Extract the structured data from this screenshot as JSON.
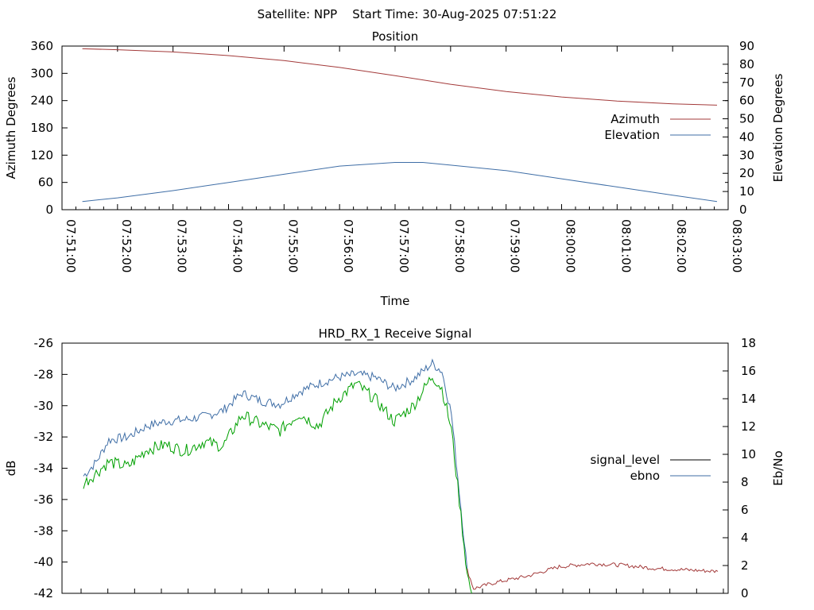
{
  "page": {
    "title": "Satellite: NPP    Start Time: 30-Aug-2025 07:51:22"
  },
  "chart_data": [
    {
      "type": "line",
      "title": "Position",
      "xlabel": "Time",
      "ylabel": "Azimuth Degrees",
      "y2label": "Elevation Degrees",
      "xlim": [
        "07:51:00",
        "08:03:00"
      ],
      "ylim": [
        0,
        360
      ],
      "y2lim": [
        0,
        90
      ],
      "x_tick_labels": [
        "07:51:00",
        "07:52:00",
        "07:53:00",
        "07:54:00",
        "07:55:00",
        "07:56:00",
        "07:57:00",
        "07:58:00",
        "07:59:00",
        "08:00:00",
        "08:01:00",
        "08:02:00",
        "08:03:00"
      ],
      "y_tick_labels": [
        "0",
        "60",
        "120",
        "180",
        "240",
        "300",
        "360"
      ],
      "y2_tick_labels": [
        "0",
        "10",
        "20",
        "30",
        "40",
        "50",
        "60",
        "70",
        "80",
        "90"
      ],
      "legend_placement": "right",
      "grid": false,
      "series": [
        {
          "name": "Azimuth",
          "axis": "y",
          "color": "#a33a3a",
          "points": [
            [
              "07:51:22",
              354
            ],
            [
              "07:52:00",
              352
            ],
            [
              "07:53:00",
              347
            ],
            [
              "07:54:00",
              339
            ],
            [
              "07:55:00",
              328
            ],
            [
              "07:56:00",
              313
            ],
            [
              "07:57:00",
              295
            ],
            [
              "07:58:00",
              276
            ],
            [
              "07:59:00",
              260
            ],
            [
              "08:00:00",
              248
            ],
            [
              "08:01:00",
              239
            ],
            [
              "08:02:00",
              233
            ],
            [
              "08:02:48",
              230
            ]
          ]
        },
        {
          "name": "Elevation",
          "axis": "y2",
          "color": "#3f6ea6",
          "points": [
            [
              "07:51:22",
              4.5
            ],
            [
              "07:52:00",
              6.5
            ],
            [
              "07:53:00",
              10.5
            ],
            [
              "07:54:00",
              15
            ],
            [
              "07:55:00",
              19.5
            ],
            [
              "07:56:00",
              24
            ],
            [
              "07:57:00",
              26
            ],
            [
              "07:57:30",
              26
            ],
            [
              "07:58:00",
              24.5
            ],
            [
              "07:59:00",
              21.5
            ],
            [
              "08:00:00",
              17
            ],
            [
              "08:01:00",
              12.5
            ],
            [
              "08:02:00",
              8
            ],
            [
              "08:02:48",
              4.5
            ]
          ]
        }
      ]
    },
    {
      "type": "line",
      "title": "HRD_RX_1 Receive Signal",
      "xlabel": "",
      "ylabel": "dB",
      "y2label": "Eb/No",
      "ylim": [
        -42,
        -26
      ],
      "y2lim": [
        0,
        18
      ],
      "x_ticks_count": 24,
      "y_tick_labels": [
        "-42",
        "-40",
        "-38",
        "-36",
        "-34",
        "-32",
        "-30",
        "-28",
        "-26"
      ],
      "y2_tick_labels": [
        "0",
        "2",
        "4",
        "6",
        "8",
        "10",
        "12",
        "14",
        "16",
        "18"
      ],
      "legend_placement": "right",
      "grid": false,
      "series": [
        {
          "name": "signal_level",
          "axis": "y",
          "color": "#000000",
          "points": [
            [
              0.0,
              -34.5
            ],
            [
              0.02,
              -33.6
            ],
            [
              0.04,
              -32.2
            ],
            [
              0.07,
              -32.0
            ],
            [
              0.1,
              -31.3
            ],
            [
              0.13,
              -31.0
            ],
            [
              0.16,
              -30.9
            ],
            [
              0.19,
              -30.7
            ],
            [
              0.22,
              -30.3
            ],
            [
              0.25,
              -29.2
            ],
            [
              0.28,
              -29.7
            ],
            [
              0.31,
              -29.9
            ],
            [
              0.34,
              -29.1
            ],
            [
              0.37,
              -28.6
            ],
            [
              0.4,
              -28.2
            ],
            [
              0.43,
              -28.0
            ],
            [
              0.46,
              -28.2
            ],
            [
              0.49,
              -28.9
            ],
            [
              0.52,
              -28.3
            ],
            [
              0.55,
              -27.3
            ],
            [
              0.565,
              -27.8
            ],
            [
              0.58,
              -30.5
            ],
            [
              0.595,
              -36.5
            ],
            [
              0.605,
              -40.5
            ],
            [
              0.615,
              -41.7
            ],
            [
              0.65,
              -41.3
            ],
            [
              0.7,
              -40.9
            ],
            [
              0.75,
              -40.3
            ],
            [
              0.8,
              -40.1
            ],
            [
              0.85,
              -40.2
            ],
            [
              0.9,
              -40.4
            ],
            [
              0.95,
              -40.5
            ],
            [
              1.0,
              -40.6
            ]
          ]
        },
        {
          "name": "ebno",
          "axis": "y2",
          "color": "#3f6ea6",
          "points": [
            [
              0.0,
              8.0
            ],
            [
              0.02,
              9.0
            ],
            [
              0.04,
              10.3
            ],
            [
              0.07,
              10.5
            ],
            [
              0.1,
              11.2
            ],
            [
              0.13,
              12.0
            ],
            [
              0.16,
              12.2
            ],
            [
              0.19,
              12.3
            ],
            [
              0.22,
              12.6
            ],
            [
              0.25,
              13.7
            ],
            [
              0.28,
              13.2
            ],
            [
              0.31,
              12.9
            ],
            [
              0.34,
              13.6
            ],
            [
              0.37,
              14.5
            ],
            [
              0.4,
              15.0
            ],
            [
              0.43,
              15.4
            ],
            [
              0.46,
              15.1
            ],
            [
              0.49,
              14.4
            ],
            [
              0.52,
              15.1
            ],
            [
              0.55,
              16.3
            ],
            [
              0.565,
              15.9
            ],
            [
              0.58,
              13.5
            ],
            [
              0.595,
              7.0
            ],
            [
              0.605,
              2.0
            ],
            [
              0.612,
              0.0
            ]
          ]
        },
        {
          "name": "",
          "axis": "y",
          "color": "#00a000",
          "points": [
            [
              0.0,
              -35.0
            ],
            [
              0.02,
              -34.3
            ],
            [
              0.04,
              -33.6
            ],
            [
              0.07,
              -33.9
            ],
            [
              0.1,
              -32.8
            ],
            [
              0.13,
              -32.5
            ],
            [
              0.16,
              -32.9
            ],
            [
              0.19,
              -32.3
            ],
            [
              0.22,
              -32.6
            ],
            [
              0.25,
              -30.6
            ],
            [
              0.28,
              -31.2
            ],
            [
              0.31,
              -31.6
            ],
            [
              0.34,
              -30.5
            ],
            [
              0.37,
              -31.3
            ],
            [
              0.4,
              -29.6
            ],
            [
              0.43,
              -28.6
            ],
            [
              0.46,
              -29.6
            ],
            [
              0.49,
              -31.0
            ],
            [
              0.52,
              -30.0
            ],
            [
              0.55,
              -28.1
            ],
            [
              0.565,
              -28.9
            ],
            [
              0.58,
              -31.5
            ],
            [
              0.595,
              -37.0
            ],
            [
              0.605,
              -40.8
            ],
            [
              0.612,
              -42.0
            ]
          ]
        }
      ]
    }
  ]
}
